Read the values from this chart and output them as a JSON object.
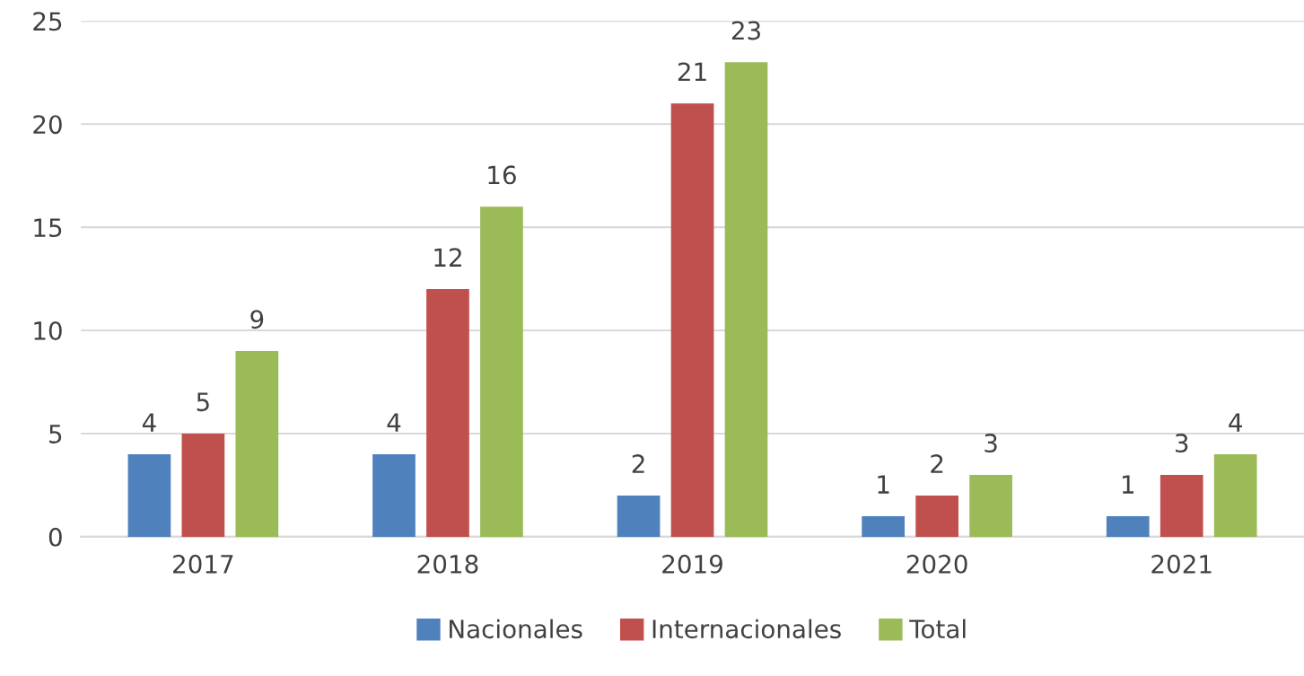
{
  "chart_data": {
    "type": "bar",
    "categories": [
      "2017",
      "2018",
      "2019",
      "2020",
      "2021"
    ],
    "series": [
      {
        "name": "Nacionales",
        "color": "#4f81bd",
        "values": [
          4,
          4,
          2,
          1,
          1
        ]
      },
      {
        "name": "Internacionales",
        "color": "#c0504d",
        "values": [
          5,
          12,
          21,
          2,
          3
        ]
      },
      {
        "name": "Total",
        "color": "#9bbb59",
        "values": [
          9,
          16,
          23,
          3,
          4
        ]
      }
    ],
    "ylim": [
      0,
      25
    ],
    "yticks": [
      0,
      5,
      10,
      15,
      20,
      25
    ],
    "grid": "y",
    "legend": "bottom",
    "data_labels": true
  }
}
